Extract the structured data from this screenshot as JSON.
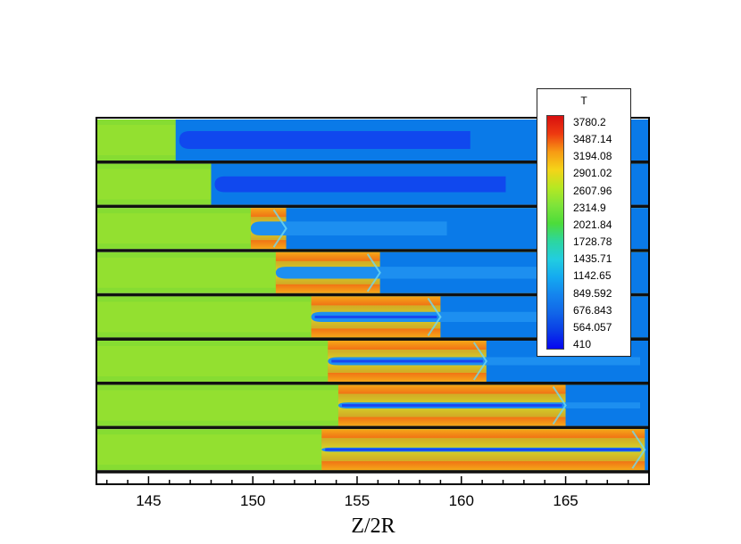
{
  "chart_data": {
    "type": "heatmap",
    "title": "",
    "xlabel": "Z/2R",
    "ylabel": "",
    "xlim": [
      142.5,
      169.0
    ],
    "x_ticks": [
      "145",
      "150",
      "155",
      "160",
      "165"
    ],
    "x_tick_values": [
      145,
      150,
      155,
      160,
      165
    ],
    "grid": false,
    "colorbar": {
      "title": "T",
      "placement": "top-right",
      "levels": [
        3780.2,
        3487.14,
        3194.08,
        2901.02,
        2607.96,
        2314.9,
        2021.84,
        1728.78,
        1435.71,
        1142.65,
        849.592,
        676.843,
        564.057,
        410
      ],
      "level_labels": [
        "3780.2",
        "3487.14",
        "3194.08",
        "2901.02",
        "2607.96",
        "2314.9",
        "2021.84",
        "1728.78",
        "1435.71",
        "1142.65",
        "849.592",
        "676.843",
        "564.057",
        "410"
      ],
      "colors": [
        "#d80f0f",
        "#ee3a10",
        "#f79a14",
        "#f5d418",
        "#b6e822",
        "#7ee43a",
        "#4cdc3a",
        "#2cd6a0",
        "#22cde0",
        "#14aaf0",
        "#1484ee",
        "#1166e8",
        "#0a3de6",
        "#0606f0"
      ]
    },
    "panels": [
      {
        "front_z": 146.3,
        "hot_to_z": null,
        "ambient_from_z": 146.3
      },
      {
        "front_z": 148.0,
        "hot_to_z": null,
        "ambient_from_z": 148.0
      },
      {
        "front_z": 149.9,
        "hot_to_z": 151.6,
        "ambient_from_z": 151.6
      },
      {
        "front_z": 151.1,
        "hot_to_z": 156.1,
        "ambient_from_z": 156.1
      },
      {
        "front_z": 152.8,
        "hot_to_z": 159.0,
        "ambient_from_z": 159.0
      },
      {
        "front_z": 153.6,
        "hot_to_z": 161.2,
        "ambient_from_z": 161.2
      },
      {
        "front_z": 154.1,
        "hot_to_z": 165.0,
        "ambient_from_z": 165.0
      },
      {
        "front_z": 153.3,
        "hot_to_z": 168.8,
        "ambient_from_z": 168.8
      }
    ]
  }
}
